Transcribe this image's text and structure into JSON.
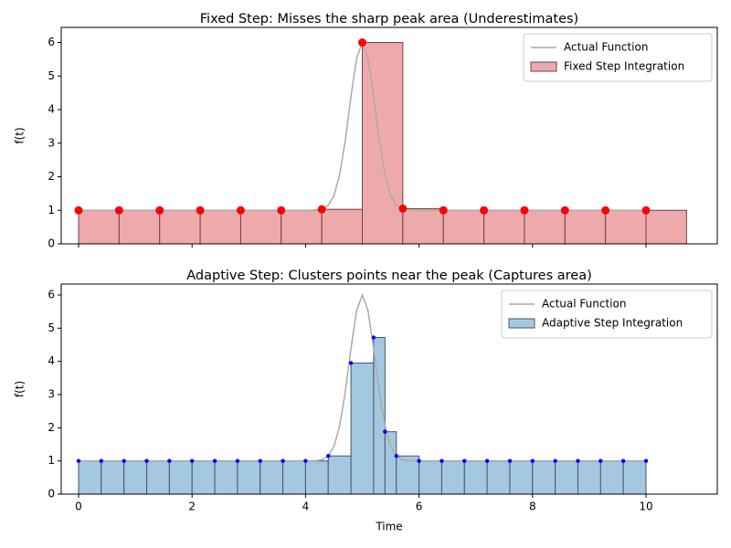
{
  "chart_data": [
    {
      "type": "bar",
      "title": "Fixed Step: Misses the sharp peak area (Underestimates)",
      "ylabel": "f(t)",
      "xlim": [
        -0.306,
        11.256
      ],
      "ylim": [
        0,
        6.45
      ],
      "xticks": [
        0,
        2,
        4,
        6,
        8,
        10
      ],
      "xtick_labels": false,
      "yticks": [
        0,
        1,
        2,
        3,
        4,
        5,
        6
      ],
      "legend": "upper right",
      "series": [
        {
          "kind": "line",
          "name": "Actual Function",
          "color": "#aaaaaa",
          "x": [
            0,
            0.5,
            1,
            1.5,
            2,
            2.5,
            3,
            3.5,
            4,
            4.1,
            4.2,
            4.3,
            4.4,
            4.5,
            4.6,
            4.7,
            4.8,
            4.9,
            5,
            5.1,
            5.2,
            5.3,
            5.4,
            5.5,
            5.6,
            5.7,
            5.8,
            5.9,
            6,
            6.5,
            7,
            7.5,
            8,
            8.5,
            9,
            9.5,
            10
          ],
          "values": [
            1,
            1,
            1,
            1,
            1,
            1,
            1,
            1,
            1,
            1.002,
            1.01,
            1.042,
            1.149,
            1.435,
            2.048,
            3.076,
            4.383,
            5.535,
            6,
            5.535,
            4.383,
            3.076,
            2.048,
            1.435,
            1.149,
            1.042,
            1.01,
            1.002,
            1,
            1,
            1,
            1,
            1,
            1,
            1,
            1,
            1
          ]
        },
        {
          "kind": "bar",
          "name": "Fixed Step Integration",
          "color": "#eeaaab",
          "edgecolor": "#6b4444",
          "bins": [
            0,
            0.714,
            1.429,
            2.143,
            2.857,
            3.571,
            4.286,
            5,
            5.714,
            6.429,
            7.143,
            7.857,
            8.571,
            9.286,
            10,
            10.714
          ],
          "values": [
            1,
            1,
            1,
            1,
            1,
            1,
            1.03,
            6,
            1.05,
            1,
            1,
            1,
            1,
            1,
            1
          ]
        },
        {
          "kind": "scatter",
          "color": "#ff0000",
          "size": 4.5,
          "x": [
            0,
            0.714,
            1.429,
            2.143,
            2.857,
            3.571,
            4.286,
            5,
            5.714,
            6.429,
            7.143,
            7.857,
            8.571,
            9.286,
            10
          ],
          "values": [
            1,
            1,
            1,
            1,
            1,
            1,
            1.03,
            6,
            1.05,
            1,
            1,
            1,
            1,
            1,
            1
          ]
        }
      ]
    },
    {
      "type": "bar",
      "title": "Adaptive Step: Clusters points near the peak (Captures area)",
      "ylabel": "f(t)",
      "xlabel": "Time",
      "xlim": [
        -0.306,
        11.256
      ],
      "ylim": [
        0,
        6.33
      ],
      "xticks": [
        0,
        2,
        4,
        6,
        8,
        10
      ],
      "yticks": [
        0,
        1,
        2,
        3,
        4,
        5,
        6
      ],
      "legend": "upper right",
      "series": [
        {
          "kind": "line",
          "name": "Actual Function",
          "color": "#aaaaaa",
          "x": [
            0,
            0.5,
            1,
            1.5,
            2,
            2.5,
            3,
            3.5,
            4,
            4.1,
            4.2,
            4.3,
            4.4,
            4.5,
            4.6,
            4.7,
            4.8,
            4.9,
            5,
            5.1,
            5.2,
            5.3,
            5.4,
            5.5,
            5.6,
            5.7,
            5.8,
            5.9,
            6,
            6.5,
            7,
            7.5,
            8,
            8.5,
            9,
            9.5,
            10
          ],
          "values": [
            1,
            1,
            1,
            1,
            1,
            1,
            1,
            1,
            1,
            1.002,
            1.01,
            1.042,
            1.149,
            1.435,
            2.048,
            3.076,
            4.383,
            5.535,
            6,
            5.535,
            4.383,
            3.076,
            2.048,
            1.435,
            1.149,
            1.042,
            1.01,
            1.002,
            1,
            1,
            1,
            1,
            1,
            1,
            1,
            1,
            1
          ]
        },
        {
          "kind": "bar",
          "name": "Adaptive Step Integration",
          "color": "#a5c8e1",
          "edgecolor": "#44556b",
          "bins": [
            0,
            0.4,
            0.8,
            1.2,
            1.6,
            2,
            2.4,
            2.8,
            3.2,
            3.6,
            4,
            4.4,
            4.8,
            5.2,
            5.4,
            5.6,
            6,
            6.4,
            6.8,
            7.2,
            7.6,
            8,
            8.4,
            8.8,
            9.2,
            9.6,
            10
          ],
          "values": [
            1,
            1,
            1,
            1,
            1,
            1,
            1,
            1,
            1,
            1,
            1,
            1.15,
            3.95,
            4.72,
            1.88,
            1.15,
            1,
            1,
            1,
            1,
            1,
            1,
            1,
            1,
            1,
            1
          ]
        },
        {
          "kind": "scatter",
          "color": "#0000ff",
          "size": 2.2,
          "x": [
            0,
            0.4,
            0.8,
            1.2,
            1.6,
            2,
            2.4,
            2.8,
            3.2,
            3.6,
            4,
            4.4,
            4.8,
            5.2,
            5.4,
            5.6,
            6,
            6.4,
            6.8,
            7.2,
            7.6,
            8,
            8.4,
            8.8,
            9.2,
            9.6,
            10
          ],
          "values": [
            1,
            1,
            1,
            1,
            1,
            1,
            1,
            1,
            1,
            1,
            1,
            1.15,
            3.95,
            4.72,
            1.88,
            1.15,
            1,
            1,
            1,
            1,
            1,
            1,
            1,
            1,
            1,
            1,
            1
          ]
        }
      ]
    }
  ]
}
